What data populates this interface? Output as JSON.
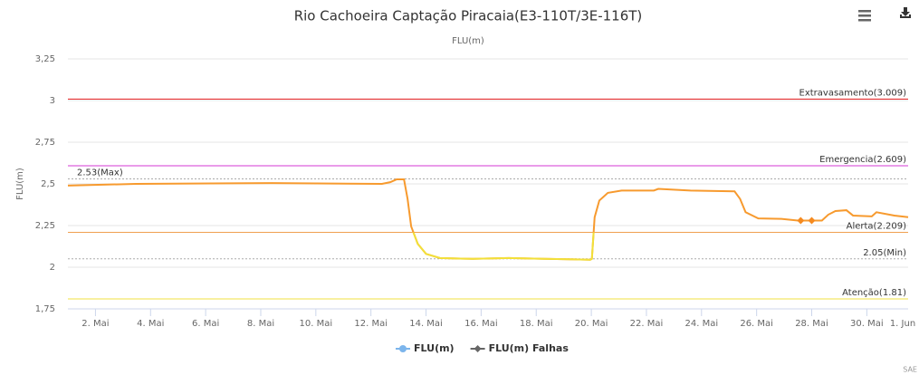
{
  "chart_data": {
    "type": "line",
    "title": "Rio Cachoeira Captação Piracaia(E3-110T/3E-116T)",
    "subtitle": "FLU(m)",
    "y_label": "FLU(m)",
    "credits": "SAE",
    "xlim": [
      1,
      31.5
    ],
    "xticks": [
      {
        "value": 2,
        "label": "2. Mai"
      },
      {
        "value": 4,
        "label": "4. Mai"
      },
      {
        "value": 6,
        "label": "6. Mai"
      },
      {
        "value": 8,
        "label": "8. Mai"
      },
      {
        "value": 10,
        "label": "10. Mai"
      },
      {
        "value": 12,
        "label": "12. Mai"
      },
      {
        "value": 14,
        "label": "14. Mai"
      },
      {
        "value": 16,
        "label": "16. Mai"
      },
      {
        "value": 18,
        "label": "18. Mai"
      },
      {
        "value": 20,
        "label": "20. Mai"
      },
      {
        "value": 22,
        "label": "22. Mai"
      },
      {
        "value": 24,
        "label": "24. Mai"
      },
      {
        "value": 26,
        "label": "26. Mai"
      },
      {
        "value": 28,
        "label": "28. Mai"
      },
      {
        "value": 30,
        "label": "30. Mai"
      },
      {
        "value": 32,
        "label": "1. Jun"
      }
    ],
    "ylim": [
      1.75,
      3.25
    ],
    "yticks": [
      {
        "value": 1.75,
        "label": "1,75"
      },
      2,
      {
        "value": 2.25,
        "label": "2,25"
      },
      {
        "value": 2.5,
        "label": "2,5"
      },
      {
        "value": 2.75,
        "label": "2,75"
      },
      3,
      {
        "value": 3.25,
        "label": "3,25"
      }
    ],
    "grid": true,
    "plot_lines": [
      {
        "label": "Extravasamento(3.009)",
        "value": 3.009,
        "color": "#e41a1c",
        "dash": "solid",
        "align": "right"
      },
      {
        "label": "Emergencia(2.609)",
        "value": 2.609,
        "color": "#d63ad6",
        "dash": "solid",
        "align": "right"
      },
      {
        "label": "2.53(Max)",
        "value": 2.53,
        "color": "#aaaaaa",
        "dash": "dotted",
        "align": "left"
      },
      {
        "label": "Alerta(2.209)",
        "value": 2.209,
        "color": "#f0a050",
        "dash": "solid",
        "align": "right"
      },
      {
        "label": "2.05(Min)",
        "value": 2.05,
        "color": "#aaaaaa",
        "dash": "dotted",
        "align": "right"
      },
      {
        "label": "Atenção(1.81)",
        "value": 1.81,
        "color": "#f0e040",
        "dash": "solid",
        "align": "right"
      }
    ],
    "series": [
      {
        "name": "FLU(m)",
        "color": "#7cb5ec",
        "line_color": "#f79a2e",
        "zones": [
          {
            "upto": 2.209,
            "color": "#f2e03a"
          }
        ],
        "x": [
          1,
          3.47,
          8.4,
          12.4,
          12.7,
          12.93,
          13.2,
          13.33,
          13.46,
          13.7,
          14.0,
          14.5,
          15.7,
          17.0,
          18.3,
          19.96,
          20.02,
          20.12,
          20.29,
          20.6,
          21.1,
          22.27,
          22.43,
          23.6,
          25.2,
          25.4,
          25.6,
          26.06,
          26.9,
          27.5,
          28.37,
          28.6,
          28.86,
          29.26,
          29.5,
          30.18,
          30.35,
          31.0,
          31.5
        ],
        "values": [
          2.49,
          2.5,
          2.505,
          2.5,
          2.51,
          2.527,
          2.527,
          2.41,
          2.245,
          2.14,
          2.08,
          2.055,
          2.05,
          2.055,
          2.05,
          2.045,
          2.05,
          2.3,
          2.4,
          2.446,
          2.46,
          2.46,
          2.47,
          2.46,
          2.455,
          2.41,
          2.33,
          2.293,
          2.29,
          2.28,
          2.28,
          2.315,
          2.337,
          2.342,
          2.31,
          2.305,
          2.33,
          2.31,
          2.3
        ]
      },
      {
        "name": "FLU(m) Falhas",
        "color": "#f58a1f",
        "marker": "diamond",
        "legend_color": "#666666",
        "x": [
          27.6,
          28.0
        ],
        "values": [
          2.28,
          2.28
        ]
      }
    ]
  }
}
